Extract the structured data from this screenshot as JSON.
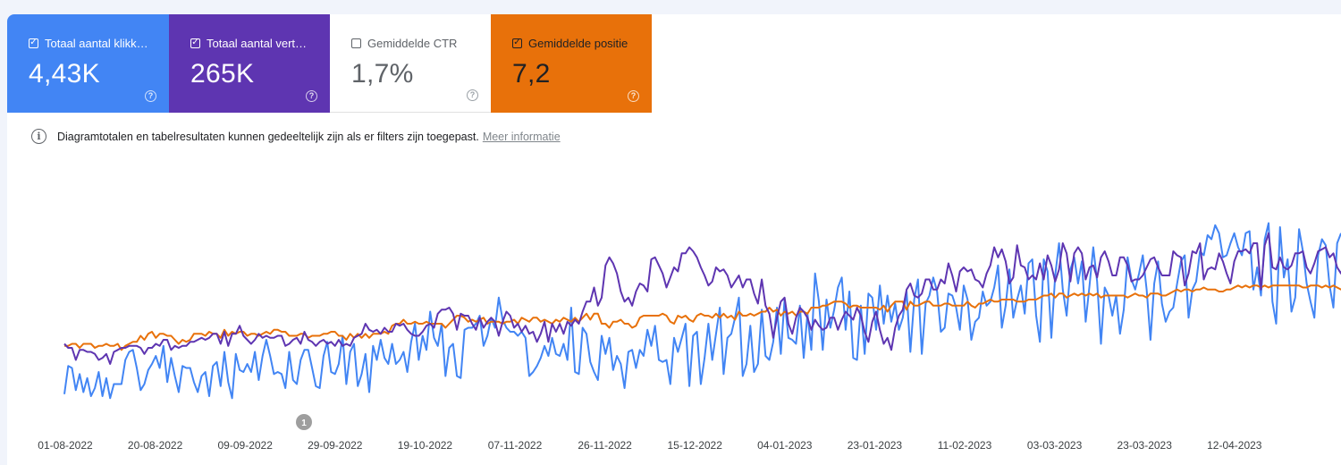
{
  "metrics": [
    {
      "label": "Totaal aantal klikk…",
      "value": "4,43K",
      "checked": true,
      "color": "#4285f4"
    },
    {
      "label": "Totaal aantal vert…",
      "value": "265K",
      "checked": true,
      "color": "#5e35b1"
    },
    {
      "label": "Gemiddelde CTR",
      "value": "1,7%",
      "checked": false,
      "color": "#ffffff"
    },
    {
      "label": "Gemiddelde positie",
      "value": "7,2",
      "checked": true,
      "color": "#e8710a"
    }
  ],
  "icons": {
    "checkbox": "checkbox-icon",
    "help": "help-icon",
    "info": "info-icon"
  },
  "notice": {
    "text": "Diagramtotalen en tabelresultaten kunnen gedeeltelijk zijn als er filters zijn toegepast.",
    "link": "Meer informatie"
  },
  "annotation": {
    "label": "1"
  },
  "chart_data": {
    "type": "line",
    "x_ticks": [
      "01-08-2022",
      "20-08-2022",
      "09-09-2022",
      "29-09-2022",
      "19-10-2022",
      "07-11-2022",
      "26-11-2022",
      "15-12-2022",
      "04-01-2023",
      "23-01-2023",
      "11-02-2023",
      "03-03-2023",
      "23-03-2023",
      "12-04-2023"
    ],
    "grid": false,
    "legend": "none",
    "series": [
      {
        "name": "Totaal aantal klikk…",
        "color": "#4285f4",
        "values": [
          9,
          23,
          22,
          11,
          19,
          10,
          17,
          8,
          12,
          20,
          8,
          17,
          7,
          14,
          14,
          14,
          26,
          30,
          31,
          22,
          11,
          14,
          21,
          24,
          28,
          22,
          33,
          15,
          27,
          18,
          10,
          23,
          22,
          22,
          15,
          10,
          18,
          20,
          8,
          23,
          25,
          13,
          30,
          15,
          7,
          29,
          21,
          20,
          24,
          20,
          30,
          16,
          28,
          36,
          28,
          19,
          20,
          19,
          12,
          30,
          16,
          14,
          26,
          31,
          31,
          22,
          13,
          12,
          28,
          35,
          20,
          19,
          24,
          38,
          14,
          30,
          34,
          13,
          19,
          29,
          10,
          33,
          26,
          36,
          27,
          24,
          34,
          24,
          26,
          30,
          20,
          35,
          44,
          26,
          38,
          31,
          50,
          37,
          33,
          44,
          18,
          32,
          34,
          18,
          17,
          41,
          42,
          42,
          44,
          48,
          33,
          38,
          47,
          42,
          57,
          46,
          42,
          40,
          40,
          38,
          40,
          37,
          18,
          20,
          23,
          27,
          33,
          28,
          37,
          29,
          28,
          34,
          26,
          52,
          20,
          19,
          42,
          39,
          25,
          20,
          16,
          38,
          29,
          37,
          21,
          28,
          24,
          12,
          30,
          31,
          22,
          31,
          28,
          41,
          33,
          43,
          26,
          25,
          26,
          14,
          37,
          30,
          37,
          44,
          13,
          38,
          40,
          14,
          27,
          44,
          26,
          39,
          52,
          19,
          37,
          39,
          47,
          57,
          18,
          24,
          43,
          20,
          24,
          51,
          28,
          26,
          35,
          52,
          29,
          56,
          37,
          36,
          34,
          53,
          27,
          49,
          31,
          69,
          55,
          31,
          56,
          42,
          51,
          62,
          67,
          41,
          60,
          27,
          26,
          53,
          29,
          59,
          57,
          41,
          63,
          44,
          58,
          45,
          54,
          41,
          47,
          60,
          30,
          56,
          66,
          29,
          54,
          58,
          67,
          60,
          40,
          42,
          59,
          58,
          52,
          41,
          63,
          56,
          36,
          45,
          47,
          60,
          53,
          55,
          62,
          73,
          42,
          53,
          71,
          47,
          56,
          63,
          49,
          74,
          76,
          48,
          35,
          76,
          70,
          37,
          68,
          84,
          61,
          48,
          71,
          77,
          64,
          75,
          45,
          63,
          82,
          65,
          34,
          62,
          58,
          48,
          58,
          39,
          51,
          77,
          66,
          61,
          69,
          78,
          61,
          36,
          64,
          75,
          54,
          45,
          50,
          52,
          64,
          75,
          78,
          47,
          61,
          65,
          80,
          78,
          88,
          86,
          93,
          89,
          77,
          78,
          84,
          89,
          82,
          78,
          89,
          90,
          61,
          72,
          58,
          86,
          94,
          55,
          44,
          92,
          67,
          76,
          50,
          57,
          91,
          80,
          64,
          55,
          47,
          78,
          86,
          83,
          63,
          52,
          84,
          89
        ]
      },
      {
        "name": "Totaal aantal vert…",
        "color": "#5e35b1",
        "values": [
          34,
          32,
          32,
          26,
          31,
          31,
          30,
          30,
          29,
          26,
          27,
          29,
          24,
          30,
          31,
          32,
          32,
          33,
          33,
          33,
          32,
          29,
          32,
          32,
          34,
          33,
          36,
          36,
          31,
          33,
          32,
          33,
          33,
          35,
          35,
          36,
          37,
          36,
          37,
          39,
          39,
          34,
          40,
          33,
          39,
          39,
          43,
          38,
          36,
          34,
          36,
          39,
          37,
          38,
          37,
          37,
          38,
          38,
          33,
          34,
          36,
          37,
          34,
          40,
          36,
          35,
          33,
          35,
          36,
          34,
          35,
          33,
          36,
          33,
          34,
          33,
          37,
          38,
          39,
          44,
          41,
          40,
          41,
          39,
          42,
          40,
          40,
          44,
          43,
          44,
          41,
          39,
          38,
          38,
          40,
          43,
          44,
          42,
          49,
          51,
          51,
          52,
          49,
          41,
          49,
          48,
          48,
          44,
          41,
          47,
          42,
          45,
          47,
          45,
          38,
          45,
          50,
          48,
          42,
          44,
          40,
          43,
          39,
          40,
          35,
          39,
          45,
          35,
          44,
          40,
          44,
          39,
          45,
          43,
          46,
          44,
          50,
          55,
          55,
          62,
          53,
          57,
          73,
          77,
          74,
          69,
          60,
          55,
          57,
          53,
          60,
          64,
          63,
          60,
          76,
          77,
          73,
          69,
          62,
          67,
          72,
          70,
          79,
          79,
          82,
          80,
          77,
          72,
          68,
          63,
          65,
          72,
          70,
          71,
          68,
          62,
          65,
          68,
          62,
          66,
          66,
          59,
          54,
          66,
          53,
          49,
          37,
          47,
          55,
          57,
          44,
          39,
          47,
          52,
          50,
          47,
          41,
          46,
          43,
          41,
          42,
          47,
          47,
          41,
          46,
          50,
          48,
          46,
          52,
          48,
          40,
          35,
          45,
          50,
          41,
          34,
          37,
          31,
          42,
          48,
          51,
          61,
          64,
          58,
          57,
          59,
          66,
          66,
          61,
          61,
          66,
          64,
          74,
          68,
          60,
          70,
          72,
          70,
          71,
          66,
          65,
          62,
          69,
          73,
          82,
          77,
          81,
          75,
          64,
          67,
          83,
          73,
          72,
          66,
          68,
          66,
          74,
          66,
          78,
          73,
          65,
          71,
          84,
          79,
          65,
          79,
          82,
          79,
          66,
          72,
          73,
          67,
          77,
          80,
          75,
          68,
          68,
          77,
          77,
          73,
          65,
          66,
          66,
          68,
          72,
          76,
          77,
          72,
          68,
          68,
          68,
          80,
          78,
          77,
          63,
          69,
          80,
          79,
          84,
          66,
          71,
          72,
          71,
          79,
          75,
          69,
          64,
          75,
          80,
          80,
          81,
          79,
          84,
          84,
          61,
          83,
          89,
          72,
          71,
          77,
          72,
          71,
          73,
          79,
          79,
          80,
          72,
          69,
          74,
          80,
          81,
          82,
          77,
          79,
          72,
          69,
          75,
          78,
          79,
          79,
          81,
          78,
          72,
          73,
          72,
          74,
          80,
          82,
          69,
          66,
          80,
          79,
          73,
          69,
          74,
          84,
          78,
          72,
          58,
          54,
          52
        ]
      },
      {
        "name": "Gemiddelde positie",
        "color": "#e8710a",
        "values": [
          33,
          33,
          34,
          34,
          32,
          34,
          34,
          34,
          32,
          33,
          33,
          34,
          33,
          33,
          34,
          31,
          33,
          34,
          35,
          35,
          38,
          36,
          39,
          40,
          37,
          39,
          39,
          38,
          38,
          36,
          34,
          36,
          35,
          36,
          39,
          39,
          39,
          38,
          40,
          39,
          39,
          37,
          41,
          38,
          40,
          39,
          40,
          40,
          38,
          39,
          39,
          38,
          39,
          40,
          39,
          41,
          41,
          40,
          40,
          38,
          38,
          38,
          39,
          39,
          37,
          38,
          38,
          38,
          39,
          39,
          40,
          40,
          38,
          38,
          36,
          39,
          37,
          39,
          37,
          39,
          37,
          39,
          39,
          39,
          40,
          39,
          43,
          44,
          44,
          46,
          44,
          44,
          45,
          44,
          44,
          45,
          44,
          44,
          44,
          44,
          42,
          44,
          46,
          48,
          48,
          47,
          45,
          46,
          45,
          46,
          47,
          44,
          45,
          45,
          45,
          44,
          45,
          45,
          46,
          44,
          47,
          46,
          45,
          47,
          47,
          45,
          46,
          45,
          44,
          46,
          45,
          47,
          46,
          45,
          47,
          45,
          47,
          49,
          46,
          49,
          49,
          44,
          44,
          42,
          45,
          45,
          46,
          44,
          44,
          42,
          43,
          47,
          48,
          48,
          48,
          48,
          48,
          49,
          48,
          45,
          44,
          48,
          47,
          48,
          46,
          45,
          48,
          49,
          48,
          48,
          47,
          49,
          47,
          49,
          47,
          48,
          46,
          50,
          48,
          48,
          49,
          48,
          49,
          50,
          50,
          52,
          50,
          51,
          48,
          50,
          49,
          50,
          48,
          50,
          50,
          49,
          52,
          52,
          52,
          53,
          53,
          54,
          55,
          55,
          55,
          54,
          52,
          53,
          53,
          52,
          52,
          52,
          52,
          52,
          51,
          53,
          50,
          53,
          55,
          55,
          55,
          51,
          55,
          53,
          53,
          54,
          55,
          55,
          53,
          53,
          53,
          54,
          54,
          53,
          53,
          53,
          53,
          55,
          53,
          52,
          54,
          54,
          55,
          56,
          55,
          55,
          56,
          56,
          56,
          56,
          55,
          55,
          55,
          56,
          56,
          56,
          57,
          58,
          58,
          59,
          57,
          59,
          59,
          57,
          58,
          59,
          58,
          59,
          58,
          59,
          58,
          59,
          57,
          58,
          58,
          58,
          58,
          58,
          58,
          57,
          58,
          59,
          58,
          58,
          57,
          59,
          59,
          59,
          58,
          58,
          59,
          60,
          61,
          60,
          61,
          61,
          60,
          61,
          61,
          62,
          61,
          61,
          61,
          60,
          60,
          61,
          61,
          62,
          63,
          62,
          63,
          62,
          63,
          63,
          62,
          63,
          62,
          63,
          63,
          63,
          63,
          63,
          63,
          63,
          63,
          62,
          62,
          63,
          63,
          63,
          62,
          63,
          62,
          63,
          62,
          61,
          62,
          62,
          62,
          62,
          62,
          64,
          63,
          63,
          64,
          64,
          63,
          64,
          64,
          64,
          64,
          65,
          65
        ]
      }
    ]
  }
}
